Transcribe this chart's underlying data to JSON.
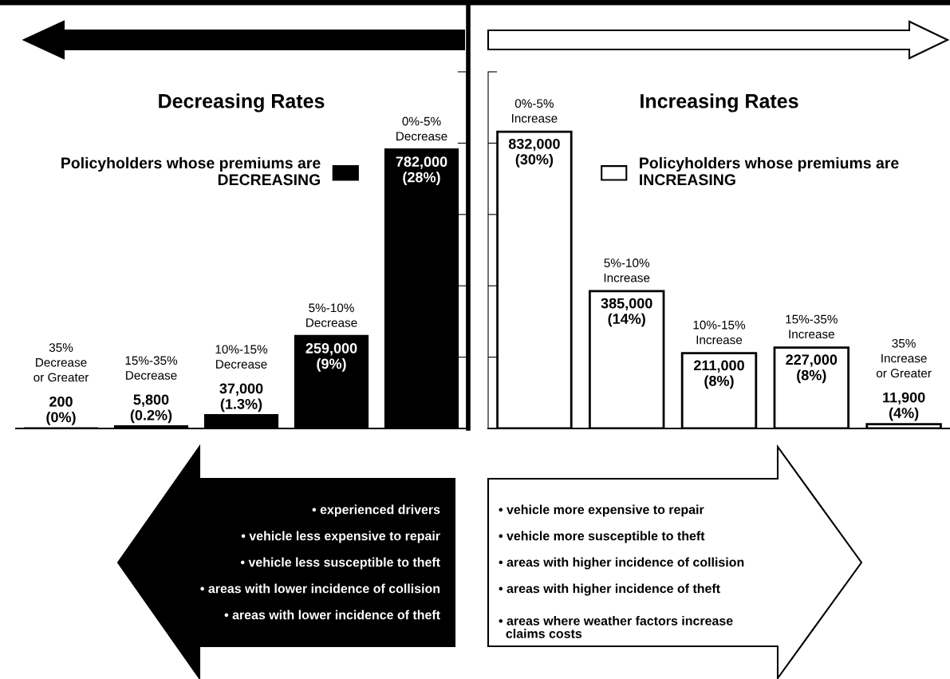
{
  "chart_data": [
    {
      "type": "bar",
      "title": "Decreasing Rates",
      "categories": [
        "35%\nDecrease\nor Greater",
        "15%-35%\nDecrease",
        "10%-15%\nDecrease",
        "5%-10%\nDecrease",
        "0%-5%\nDecrease"
      ],
      "series": [
        {
          "name": "Policyholders whose premiums are\nDECREASING",
          "color": "#000000",
          "values": [
            200,
            5800,
            37000,
            259000,
            782000
          ],
          "value_labels": [
            "200\n(0%)",
            "5,800\n(0.2%)",
            "37,000\n(1.3%)",
            "259,000\n(9%)",
            "782,000\n(28%)"
          ]
        }
      ],
      "ylim": [
        0,
        1000000
      ],
      "yticks": [
        {
          "value": 0,
          "label": null
        },
        {
          "value": 200000,
          "label": null
        },
        {
          "value": 400000,
          "label": null
        },
        {
          "value": 600000,
          "label": null
        },
        {
          "value": 800000,
          "label": null
        },
        {
          "value": 1000000,
          "label": null
        }
      ],
      "legend": "top",
      "grid": false,
      "annotations": [
        "• experienced drivers",
        "• vehicle less expensive to repair",
        "• vehicle less susceptible to theft",
        "• areas with lower incidence of collision",
        "• areas with lower incidence of theft"
      ]
    },
    {
      "type": "bar",
      "title": "Increasing Rates",
      "categories": [
        "0%-5%\nIncrease",
        "5%-10%\nIncrease",
        "10%-15%\nIncrease",
        "15%-35%\nIncrease",
        "35%\nIncrease\nor Greater"
      ],
      "series": [
        {
          "name": "Policyholders whose premiums are\nINCREASING",
          "color": "#ffffff",
          "values": [
            832000,
            385000,
            211000,
            227000,
            11900
          ],
          "value_labels": [
            "832,000\n(30%)",
            "385,000\n(14%)",
            "211,000\n(8%)",
            "227,000\n(8%)",
            "11,900\n(4%)"
          ]
        }
      ],
      "ylim": [
        0,
        1000000
      ],
      "yticks": [
        {
          "value": 0,
          "label": null
        },
        {
          "value": 200000,
          "label": null
        },
        {
          "value": 400000,
          "label": null
        },
        {
          "value": 600000,
          "label": null
        },
        {
          "value": 800000,
          "label": null
        },
        {
          "value": 1000000,
          "label": null
        }
      ],
      "legend": "top",
      "grid": false,
      "annotations": [
        "• vehicle more expensive to repair",
        "• vehicle more susceptible to theft",
        "• areas with higher incidence of collision",
        "• areas with higher incidence of theft",
        "• areas where weather factors increase\n  claims costs"
      ]
    }
  ]
}
